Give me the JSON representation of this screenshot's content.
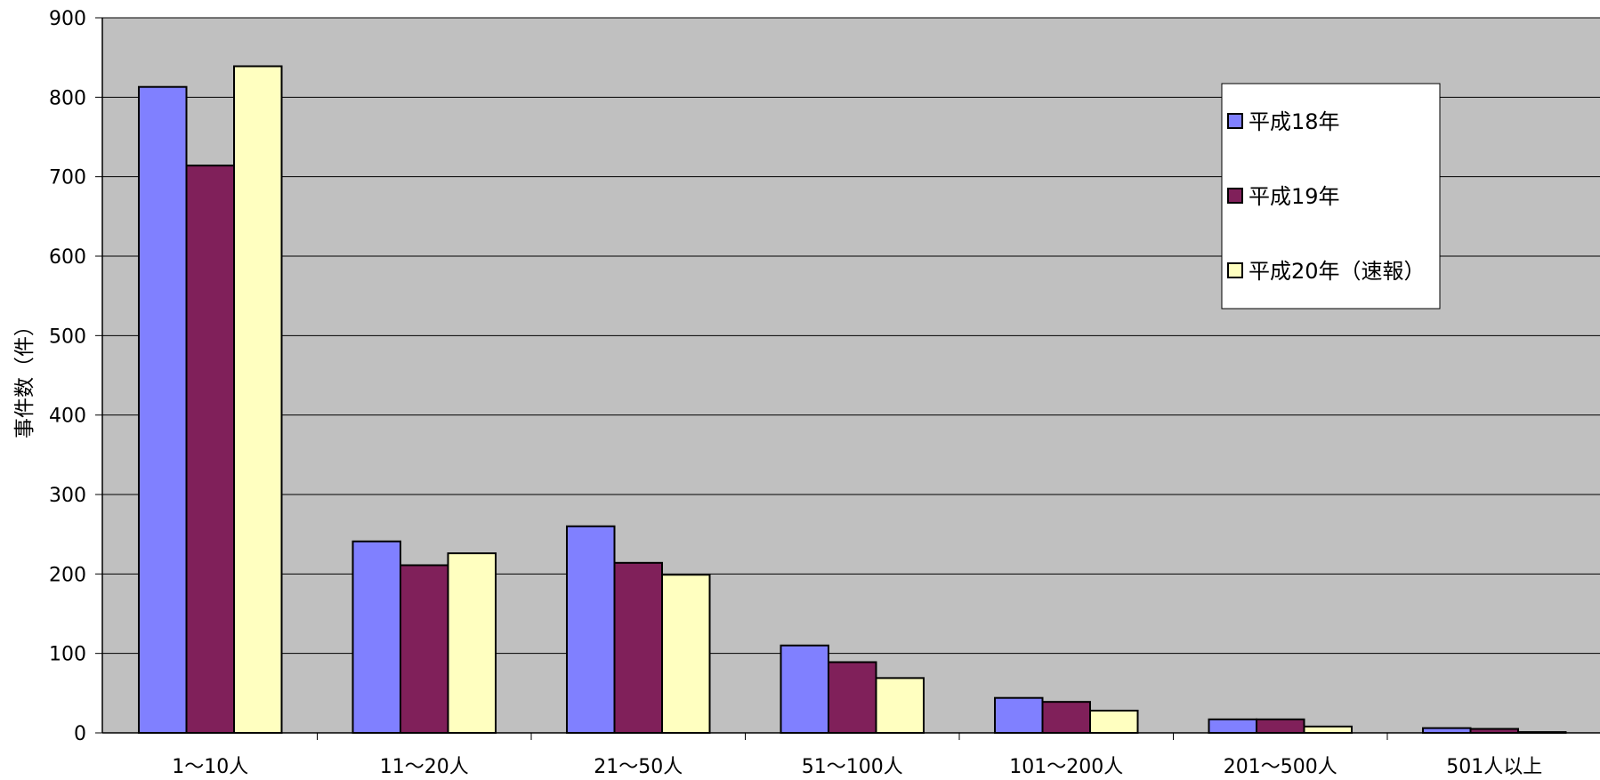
{
  "chart_data": {
    "type": "bar",
    "categories": [
      "1～10人",
      "11～20人",
      "21～50人",
      "51～100人",
      "101～200人",
      "201～500人",
      "501人以上"
    ],
    "series": [
      {
        "name": "平成18年",
        "color": "#8080FF",
        "values": [
          813,
          241,
          260,
          110,
          44,
          17,
          6
        ]
      },
      {
        "name": "平成19年",
        "color": "#80205A",
        "values": [
          714,
          211,
          214,
          89,
          39,
          17,
          5
        ]
      },
      {
        "name": "平成20年（速報）",
        "color": "#FFFFC0",
        "values": [
          839,
          226,
          199,
          69,
          28,
          8,
          1
        ]
      }
    ],
    "ylabel": "事件数（件）",
    "ylim": [
      0,
      900
    ],
    "yticks": [
      0,
      100,
      200,
      300,
      400,
      500,
      600,
      700,
      800,
      900
    ],
    "grid": true,
    "legend_position": "top-right",
    "plot_background": "#C0C0C0"
  }
}
